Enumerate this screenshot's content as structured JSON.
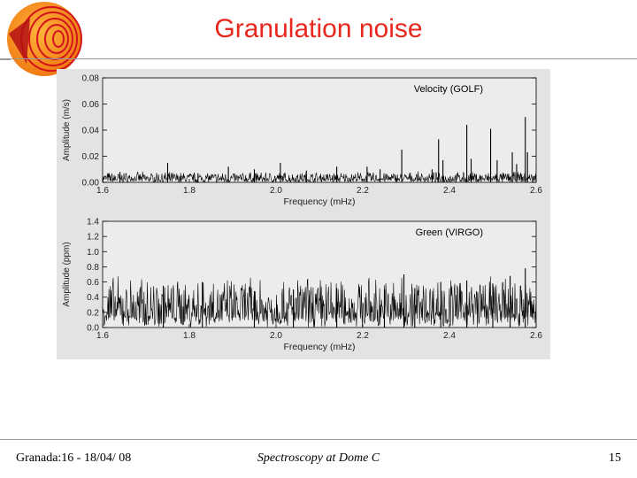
{
  "slide": {
    "title": "Granulation noise",
    "footer_left": "Granada:16 - 18/04/ 08",
    "footer_center": "Spectroscopy at Dome C",
    "page_number": "15"
  },
  "colors": {
    "title": "#e8281e",
    "figure_background": "#e3e3e3",
    "trace": "#000000",
    "logo_orange": "#f07a12",
    "logo_red": "#d2141e"
  },
  "chart_data": [
    {
      "type": "line",
      "legend": "Velocity (GOLF)",
      "xlabel": "Frequency (mHz)",
      "ylabel": "Amplitude (m/s)",
      "xlim": [
        1.6,
        2.6
      ],
      "ylim": [
        0.0,
        0.08
      ],
      "x_ticks": [
        "1.6",
        "1.8",
        "2.0",
        "2.2",
        "2.4",
        "2.6"
      ],
      "y_ticks": [
        "0.00",
        "0.02",
        "0.04",
        "0.06",
        "0.08"
      ],
      "noise_level": 0.003,
      "peaks": [
        {
          "x": 1.64,
          "y": 0.008
        },
        {
          "x": 1.75,
          "y": 0.015
        },
        {
          "x": 1.82,
          "y": 0.007
        },
        {
          "x": 1.89,
          "y": 0.012
        },
        {
          "x": 1.95,
          "y": 0.01
        },
        {
          "x": 2.01,
          "y": 0.015
        },
        {
          "x": 2.07,
          "y": 0.009
        },
        {
          "x": 2.14,
          "y": 0.012
        },
        {
          "x": 2.21,
          "y": 0.012
        },
        {
          "x": 2.24,
          "y": 0.01
        },
        {
          "x": 2.29,
          "y": 0.025
        },
        {
          "x": 2.36,
          "y": 0.01
        },
        {
          "x": 2.375,
          "y": 0.033
        },
        {
          "x": 2.385,
          "y": 0.017
        },
        {
          "x": 2.44,
          "y": 0.044
        },
        {
          "x": 2.45,
          "y": 0.018
        },
        {
          "x": 2.495,
          "y": 0.041
        },
        {
          "x": 2.51,
          "y": 0.017
        },
        {
          "x": 2.545,
          "y": 0.023
        },
        {
          "x": 2.555,
          "y": 0.014
        },
        {
          "x": 2.575,
          "y": 0.05
        },
        {
          "x": 2.58,
          "y": 0.023
        }
      ]
    },
    {
      "type": "line",
      "legend": "Green (VIRGO)",
      "xlabel": "Frequency (mHz)",
      "ylabel": "Amplitude (ppm)",
      "xlim": [
        1.6,
        2.6
      ],
      "ylim": [
        0.0,
        1.4
      ],
      "x_ticks": [
        "1.6",
        "1.8",
        "2.0",
        "2.2",
        "2.4",
        "2.6"
      ],
      "y_ticks": [
        "0.0",
        "0.2",
        "0.4",
        "0.6",
        "0.8",
        "1.0",
        "1.2",
        "1.4"
      ],
      "noise_level": 0.25,
      "peaks": [
        {
          "x": 1.74,
          "y": 0.55
        },
        {
          "x": 1.83,
          "y": 0.6
        },
        {
          "x": 1.95,
          "y": 0.48
        },
        {
          "x": 2.04,
          "y": 0.5
        },
        {
          "x": 2.14,
          "y": 0.52
        },
        {
          "x": 2.25,
          "y": 0.5
        },
        {
          "x": 2.295,
          "y": 0.7
        },
        {
          "x": 2.32,
          "y": 0.52
        },
        {
          "x": 2.38,
          "y": 0.6
        },
        {
          "x": 2.44,
          "y": 0.62
        },
        {
          "x": 2.5,
          "y": 0.58
        },
        {
          "x": 2.54,
          "y": 0.68
        },
        {
          "x": 2.575,
          "y": 0.78
        }
      ]
    }
  ]
}
